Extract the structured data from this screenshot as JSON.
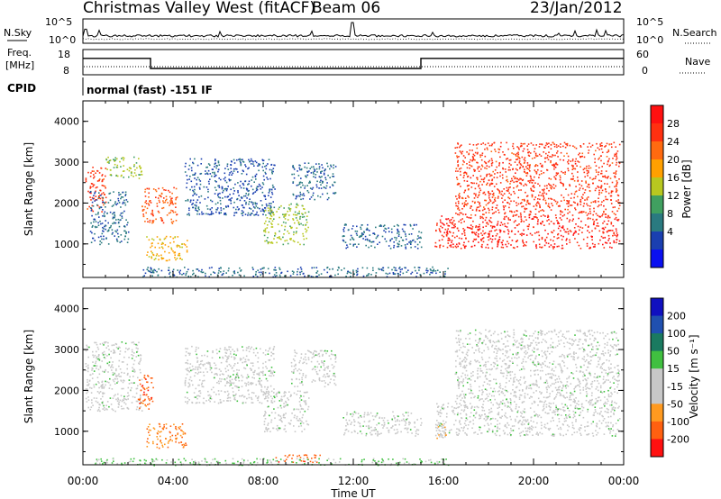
{
  "header": {
    "station": "Christmas Valley West (fitACF)",
    "beam": "Beam 06",
    "date": "23/Jan/2012"
  },
  "noise_panel": {
    "left_label": "N.Sky",
    "right_label": "N.Search",
    "ticks": [
      "10^5",
      "10^0"
    ]
  },
  "freq_panel": {
    "label_line1": "Freq.",
    "label_line2": "[MHz]",
    "left_ticks": [
      "18",
      "8"
    ],
    "right_label": "Nave",
    "right_ticks": [
      "60",
      "0"
    ]
  },
  "cpid": {
    "label": "CPID",
    "text": "normal (fast) -151 IF"
  },
  "time_axis": {
    "ticks": [
      "00:00",
      "04:00",
      "08:00",
      "12:00",
      "16:00",
      "20:00",
      "00:00"
    ],
    "label": "Time UT"
  },
  "power_scale": {
    "title": "Power [dB]",
    "ticks": [
      "28",
      "24",
      "20",
      "16",
      "12",
      "8",
      "4"
    ],
    "colors": [
      "#ff1010",
      "#ff3010",
      "#ff6a10",
      "#ffa000",
      "#b8c820",
      "#40a060",
      "#2a7a80",
      "#1a3fb0",
      "#0a10f0"
    ]
  },
  "velocity_scale": {
    "title": "Velocity [m s⁻¹]",
    "ticks": [
      "200",
      "100",
      "50",
      "15",
      "-15",
      "-50",
      "-100",
      "-200"
    ],
    "colors": [
      "#1010c0",
      "#2050b0",
      "#1a7a60",
      "#40c040",
      "#c8c8c8",
      "#c8c8c8",
      "#ff9a20",
      "#ff6010",
      "#ff1010"
    ]
  },
  "chart_data": [
    {
      "type": "heatmap",
      "panel": "power",
      "title": "",
      "xlabel": "",
      "ylabel": "Slant Range [km]",
      "yticks": [
        "4000",
        "3000",
        "2000",
        "1000"
      ],
      "xlim": [
        0,
        24
      ],
      "ylim": [
        180,
        4500
      ],
      "units": "dB",
      "value_range": [
        0,
        30
      ],
      "regions": [
        {
          "t0": 0.1,
          "t1": 1.0,
          "r0": 1800,
          "r1": 2900,
          "v": 26
        },
        {
          "t0": 1.0,
          "t1": 2.6,
          "r0": 2600,
          "r1": 3150,
          "v": 14
        },
        {
          "t0": 0.3,
          "t1": 2.0,
          "r0": 1000,
          "r1": 2300,
          "v": 6
        },
        {
          "t0": 2.6,
          "t1": 4.2,
          "r0": 1500,
          "r1": 2400,
          "v": 24
        },
        {
          "t0": 2.8,
          "t1": 4.6,
          "r0": 600,
          "r1": 1200,
          "v": 18
        },
        {
          "t0": 4.5,
          "t1": 8.5,
          "r0": 1700,
          "r1": 3100,
          "v": 5
        },
        {
          "t0": 8.0,
          "t1": 10.0,
          "r0": 1000,
          "r1": 2000,
          "v": 14
        },
        {
          "t0": 9.2,
          "t1": 11.2,
          "r0": 2100,
          "r1": 3000,
          "v": 6
        },
        {
          "t0": 11.5,
          "t1": 15.0,
          "r0": 900,
          "r1": 1500,
          "v": 6
        },
        {
          "t0": 2.6,
          "t1": 16.2,
          "r0": 200,
          "r1": 450,
          "v": 6
        },
        {
          "t0": 15.6,
          "t1": 23.8,
          "r0": 900,
          "r1": 1700,
          "v": 28
        },
        {
          "t0": 16.5,
          "t1": 23.8,
          "r0": 1700,
          "r1": 3500,
          "v": 26
        }
      ]
    },
    {
      "type": "heatmap",
      "panel": "velocity",
      "title": "",
      "xlabel": "Time UT",
      "ylabel": "Slant Range [km]",
      "yticks": [
        "4000",
        "3000",
        "2000",
        "1000"
      ],
      "xlim": [
        0,
        24
      ],
      "ylim": [
        180,
        4500
      ],
      "units": "m s-1",
      "value_range": [
        -200,
        200
      ],
      "regions": [
        {
          "t0": 0.1,
          "t1": 2.6,
          "r0": 1500,
          "r1": 3200,
          "v": 0
        },
        {
          "t0": 2.4,
          "t1": 3.1,
          "r0": 1500,
          "r1": 2400,
          "v": -150
        },
        {
          "t0": 2.8,
          "t1": 4.6,
          "r0": 600,
          "r1": 1200,
          "v": -120
        },
        {
          "t0": 4.5,
          "t1": 8.5,
          "r0": 1700,
          "r1": 3100,
          "v": 0
        },
        {
          "t0": 8.0,
          "t1": 10.0,
          "r0": 1000,
          "r1": 2000,
          "v": 0
        },
        {
          "t0": 9.2,
          "t1": 11.2,
          "r0": 2100,
          "r1": 3000,
          "v": 0
        },
        {
          "t0": 8.5,
          "t1": 10.5,
          "r0": 250,
          "r1": 450,
          "v": -150
        },
        {
          "t0": 0.5,
          "t1": 16.2,
          "r0": 180,
          "r1": 350,
          "v": 30
        },
        {
          "t0": 11.5,
          "t1": 15.0,
          "r0": 900,
          "r1": 1500,
          "v": 0
        },
        {
          "t0": 15.6,
          "t1": 16.1,
          "r0": 800,
          "r1": 1200,
          "v": -60
        },
        {
          "t0": 15.6,
          "t1": 23.8,
          "r0": 900,
          "r1": 1700,
          "v": 0
        },
        {
          "t0": 16.5,
          "t1": 23.8,
          "r0": 1700,
          "r1": 3500,
          "v": 0
        }
      ]
    },
    {
      "type": "line",
      "panel": "frequency",
      "ylabel": "Freq. [MHz]",
      "x": [
        0,
        3,
        3,
        15,
        15,
        24
      ],
      "y": [
        14.5,
        14.5,
        10.5,
        10.5,
        14.5,
        14.5
      ],
      "ylim": [
        8,
        18
      ]
    }
  ]
}
